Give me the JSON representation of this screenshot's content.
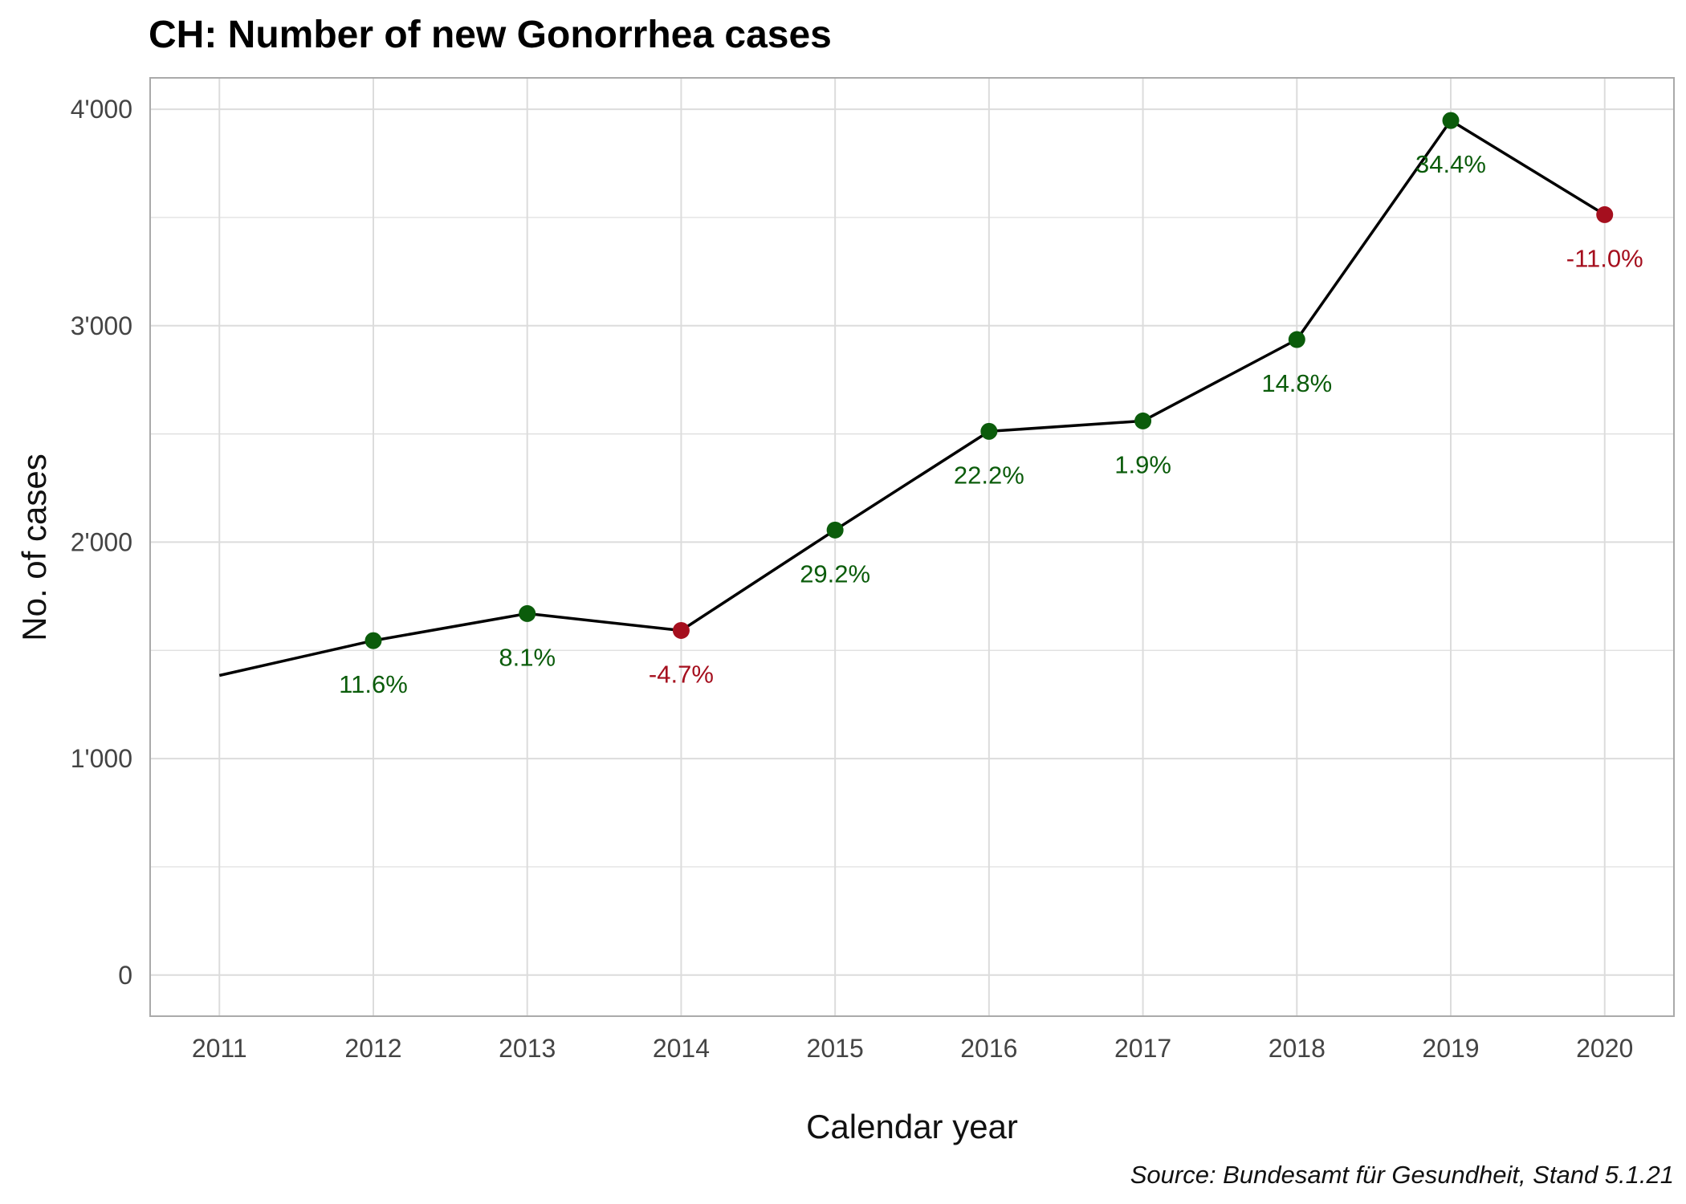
{
  "chart_data": {
    "type": "line",
    "title": "CH: Number of new Gonorrhea cases",
    "xlabel": "Calendar year",
    "ylabel": "No. of cases",
    "caption": "Source: Bundesamt für Gesundheit, Stand 5.1.21",
    "x": [
      2011,
      2012,
      2013,
      2014,
      2015,
      2016,
      2017,
      2018,
      2019,
      2020
    ],
    "x_tick_labels": [
      "2011",
      "2012",
      "2013",
      "2014",
      "2015",
      "2016",
      "2017",
      "2018",
      "2019",
      "2020"
    ],
    "values": [
      1384,
      1545,
      1670,
      1592,
      2056,
      2512,
      2560,
      2936,
      3948,
      3513
    ],
    "change_labels": [
      "",
      "11.6%",
      "8.1%",
      "-4.7%",
      "29.2%",
      "22.2%",
      "1.9%",
      "14.8%",
      "34.4%",
      "-11.0%"
    ],
    "y_ticks": [
      0,
      1000,
      2000,
      3000,
      4000
    ],
    "y_tick_labels": [
      "0",
      "1'000",
      "2'000",
      "3'000",
      "4'000"
    ],
    "ylim": [
      -190,
      4145
    ],
    "xlim": [
      2010.55,
      2020.45
    ],
    "grid": true,
    "colors": {
      "increase": "#0b5c0b",
      "decrease": "#a50f1e",
      "line": "#000000",
      "grid": "#dcdcdc",
      "panel_border": "#aaaaaa"
    }
  }
}
